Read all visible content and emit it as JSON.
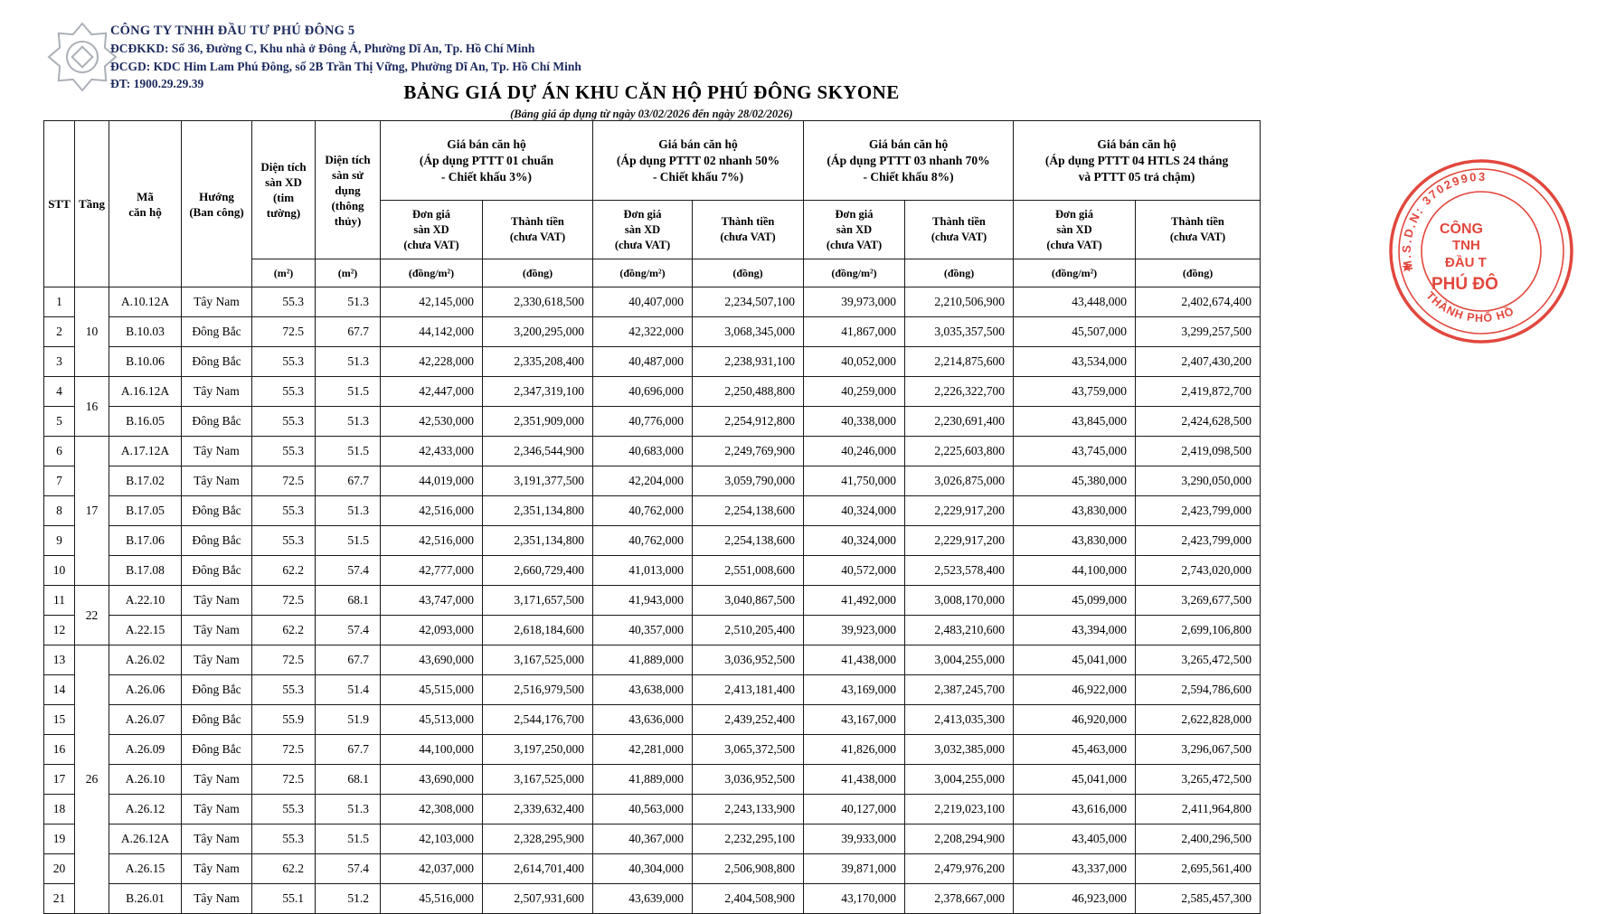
{
  "colors": {
    "letterhead_navy": "#1c2a5e",
    "stamp_red": "#e03a2f",
    "table_border": "#1a1a1a"
  },
  "company": {
    "name": "CÔNG TY TNHH ĐẦU TƯ PHÚ ĐÔNG 5",
    "address_line1": "ĐCĐKKD: Số 36, Đường C, Khu nhà ở Đông Á, Phường Dĩ An, Tp. Hồ Chí Minh",
    "address_line2": "ĐCGD: KDC Him Lam Phú Đông, số 2B Trần Thị Vững, Phường Dĩ An, Tp. Hồ Chí Minh",
    "phone_line": "ĐT: 1900.29.29.39",
    "logo": "ornamental-star-seal"
  },
  "title": "BẢNG GIÁ DỰ ÁN KHU CĂN HỘ PHÚ ĐÔNG SKYONE",
  "subtitle": "(Bảng giá áp dụng từ ngày 03/02/2026 đến ngày 28/02/2026)",
  "stamp": {
    "arc_top": "M.S.D.N: 37029903",
    "star": "★",
    "center_line1": "CÔNG",
    "center_line2": "TNH",
    "center_line3": "ĐẦU T",
    "center_line4": "PHÚ ĐÔ",
    "arc_bottom": "THÀNH PHỐ HỒ"
  },
  "table": {
    "columns": {
      "stt": "STT",
      "floor": "Tầng",
      "unit_code": "Mã\ncăn hộ",
      "direction": "Hướng\n(Ban công)",
      "area_construction": "Diện tích\nsàn XD\n(tim\ntường)",
      "area_usable": "Diện tích\nsàn sử\ndụng\n(thông\nthủy)",
      "area_unit": "(m²)",
      "unit_price_label": "Đơn giá\nsàn XD\n(chưa VAT)",
      "total_label": "Thành tiền\n(chưa VAT)",
      "unit_price_unit": "(đồng/m²)",
      "total_unit": "(đồng)",
      "price_groups": [
        {
          "title": "Giá bán căn hộ\n(Áp dụng PTTT 01 chuẩn\n- Chiết khấu 3%)"
        },
        {
          "title": "Giá bán căn hộ\n(Áp dụng PTTT 02 nhanh 50%\n- Chiết khấu 7%)"
        },
        {
          "title": "Giá bán căn hộ\n(Áp dụng PTTT 03 nhanh 70%\n- Chiết khấu 8%)"
        },
        {
          "title": "Giá bán căn hộ\n(Áp dụng PTTT 04 HTLS 24 tháng\nvà PTTT 05 trả chậm)"
        }
      ]
    },
    "floor_groups": [
      {
        "floor": "10",
        "span": 3
      },
      {
        "floor": "16",
        "span": 2
      },
      {
        "floor": "17",
        "span": 5
      },
      {
        "floor": "22",
        "span": 2
      },
      {
        "floor": "26",
        "span": 9
      }
    ],
    "rows": [
      {
        "stt": "1",
        "code": "A.10.12A",
        "direction": "Tây Nam",
        "area_xd": "55.3",
        "area_tt": "51.3",
        "prices": [
          "42,145,000",
          "2,330,618,500",
          "40,407,000",
          "2,234,507,100",
          "39,973,000",
          "2,210,506,900",
          "43,448,000",
          "2,402,674,400"
        ]
      },
      {
        "stt": "2",
        "code": "B.10.03",
        "direction": "Đông Bắc",
        "area_xd": "72.5",
        "area_tt": "67.7",
        "prices": [
          "44,142,000",
          "3,200,295,000",
          "42,322,000",
          "3,068,345,000",
          "41,867,000",
          "3,035,357,500",
          "45,507,000",
          "3,299,257,500"
        ]
      },
      {
        "stt": "3",
        "code": "B.10.06",
        "direction": "Đông Bắc",
        "area_xd": "55.3",
        "area_tt": "51.3",
        "prices": [
          "42,228,000",
          "2,335,208,400",
          "40,487,000",
          "2,238,931,100",
          "40,052,000",
          "2,214,875,600",
          "43,534,000",
          "2,407,430,200"
        ]
      },
      {
        "stt": "4",
        "code": "A.16.12A",
        "direction": "Tây Nam",
        "area_xd": "55.3",
        "area_tt": "51.5",
        "prices": [
          "42,447,000",
          "2,347,319,100",
          "40,696,000",
          "2,250,488,800",
          "40,259,000",
          "2,226,322,700",
          "43,759,000",
          "2,419,872,700"
        ]
      },
      {
        "stt": "5",
        "code": "B.16.05",
        "direction": "Đông Bắc",
        "area_xd": "55.3",
        "area_tt": "51.3",
        "prices": [
          "42,530,000",
          "2,351,909,000",
          "40,776,000",
          "2,254,912,800",
          "40,338,000",
          "2,230,691,400",
          "43,845,000",
          "2,424,628,500"
        ]
      },
      {
        "stt": "6",
        "code": "A.17.12A",
        "direction": "Tây Nam",
        "area_xd": "55.3",
        "area_tt": "51.5",
        "prices": [
          "42,433,000",
          "2,346,544,900",
          "40,683,000",
          "2,249,769,900",
          "40,246,000",
          "2,225,603,800",
          "43,745,000",
          "2,419,098,500"
        ]
      },
      {
        "stt": "7",
        "code": "B.17.02",
        "direction": "Tây Nam",
        "area_xd": "72.5",
        "area_tt": "67.7",
        "prices": [
          "44,019,000",
          "3,191,377,500",
          "42,204,000",
          "3,059,790,000",
          "41,750,000",
          "3,026,875,000",
          "45,380,000",
          "3,290,050,000"
        ]
      },
      {
        "stt": "8",
        "code": "B.17.05",
        "direction": "Đông Bắc",
        "area_xd": "55.3",
        "area_tt": "51.3",
        "prices": [
          "42,516,000",
          "2,351,134,800",
          "40,762,000",
          "2,254,138,600",
          "40,324,000",
          "2,229,917,200",
          "43,830,000",
          "2,423,799,000"
        ]
      },
      {
        "stt": "9",
        "code": "B.17.06",
        "direction": "Đông Bắc",
        "area_xd": "55.3",
        "area_tt": "51.5",
        "prices": [
          "42,516,000",
          "2,351,134,800",
          "40,762,000",
          "2,254,138,600",
          "40,324,000",
          "2,229,917,200",
          "43,830,000",
          "2,423,799,000"
        ]
      },
      {
        "stt": "10",
        "code": "B.17.08",
        "direction": "Đông Bắc",
        "area_xd": "62.2",
        "area_tt": "57.4",
        "prices": [
          "42,777,000",
          "2,660,729,400",
          "41,013,000",
          "2,551,008,600",
          "40,572,000",
          "2,523,578,400",
          "44,100,000",
          "2,743,020,000"
        ]
      },
      {
        "stt": "11",
        "code": "A.22.10",
        "direction": "Tây Nam",
        "area_xd": "72.5",
        "area_tt": "68.1",
        "prices": [
          "43,747,000",
          "3,171,657,500",
          "41,943,000",
          "3,040,867,500",
          "41,492,000",
          "3,008,170,000",
          "45,099,000",
          "3,269,677,500"
        ]
      },
      {
        "stt": "12",
        "code": "A.22.15",
        "direction": "Tây Nam",
        "area_xd": "62.2",
        "area_tt": "57.4",
        "prices": [
          "42,093,000",
          "2,618,184,600",
          "40,357,000",
          "2,510,205,400",
          "39,923,000",
          "2,483,210,600",
          "43,394,000",
          "2,699,106,800"
        ]
      },
      {
        "stt": "13",
        "code": "A.26.02",
        "direction": "Tây Nam",
        "area_xd": "72.5",
        "area_tt": "67.7",
        "prices": [
          "43,690,000",
          "3,167,525,000",
          "41,889,000",
          "3,036,952,500",
          "41,438,000",
          "3,004,255,000",
          "45,041,000",
          "3,265,472,500"
        ]
      },
      {
        "stt": "14",
        "code": "A.26.06",
        "direction": "Đông Bắc",
        "area_xd": "55.3",
        "area_tt": "51.4",
        "prices": [
          "45,515,000",
          "2,516,979,500",
          "43,638,000",
          "2,413,181,400",
          "43,169,000",
          "2,387,245,700",
          "46,922,000",
          "2,594,786,600"
        ]
      },
      {
        "stt": "15",
        "code": "A.26.07",
        "direction": "Đông Bắc",
        "area_xd": "55.9",
        "area_tt": "51.9",
        "prices": [
          "45,513,000",
          "2,544,176,700",
          "43,636,000",
          "2,439,252,400",
          "43,167,000",
          "2,413,035,300",
          "46,920,000",
          "2,622,828,000"
        ]
      },
      {
        "stt": "16",
        "code": "A.26.09",
        "direction": "Đông Bắc",
        "area_xd": "72.5",
        "area_tt": "67.7",
        "prices": [
          "44,100,000",
          "3,197,250,000",
          "42,281,000",
          "3,065,372,500",
          "41,826,000",
          "3,032,385,000",
          "45,463,000",
          "3,296,067,500"
        ]
      },
      {
        "stt": "17",
        "code": "A.26.10",
        "direction": "Tây Nam",
        "area_xd": "72.5",
        "area_tt": "68.1",
        "prices": [
          "43,690,000",
          "3,167,525,000",
          "41,889,000",
          "3,036,952,500",
          "41,438,000",
          "3,004,255,000",
          "45,041,000",
          "3,265,472,500"
        ]
      },
      {
        "stt": "18",
        "code": "A.26.12",
        "direction": "Tây Nam",
        "area_xd": "55.3",
        "area_tt": "51.3",
        "prices": [
          "42,308,000",
          "2,339,632,400",
          "40,563,000",
          "2,243,133,900",
          "40,127,000",
          "2,219,023,100",
          "43,616,000",
          "2,411,964,800"
        ]
      },
      {
        "stt": "19",
        "code": "A.26.12A",
        "direction": "Tây Nam",
        "area_xd": "55.3",
        "area_tt": "51.5",
        "prices": [
          "42,103,000",
          "2,328,295,900",
          "40,367,000",
          "2,232,295,100",
          "39,933,000",
          "2,208,294,900",
          "43,405,000",
          "2,400,296,500"
        ]
      },
      {
        "stt": "20",
        "code": "A.26.15",
        "direction": "Tây Nam",
        "area_xd": "62.2",
        "area_tt": "57.4",
        "prices": [
          "42,037,000",
          "2,614,701,400",
          "40,304,000",
          "2,506,908,800",
          "39,871,000",
          "2,479,976,200",
          "43,337,000",
          "2,695,561,400"
        ]
      },
      {
        "stt": "21",
        "code": "B.26.01",
        "direction": "Tây Nam",
        "area_xd": "55.1",
        "area_tt": "51.2",
        "prices": [
          "45,516,000",
          "2,507,931,600",
          "43,639,000",
          "2,404,508,900",
          "43,170,000",
          "2,378,667,000",
          "46,923,000",
          "2,585,457,300"
        ]
      }
    ]
  }
}
